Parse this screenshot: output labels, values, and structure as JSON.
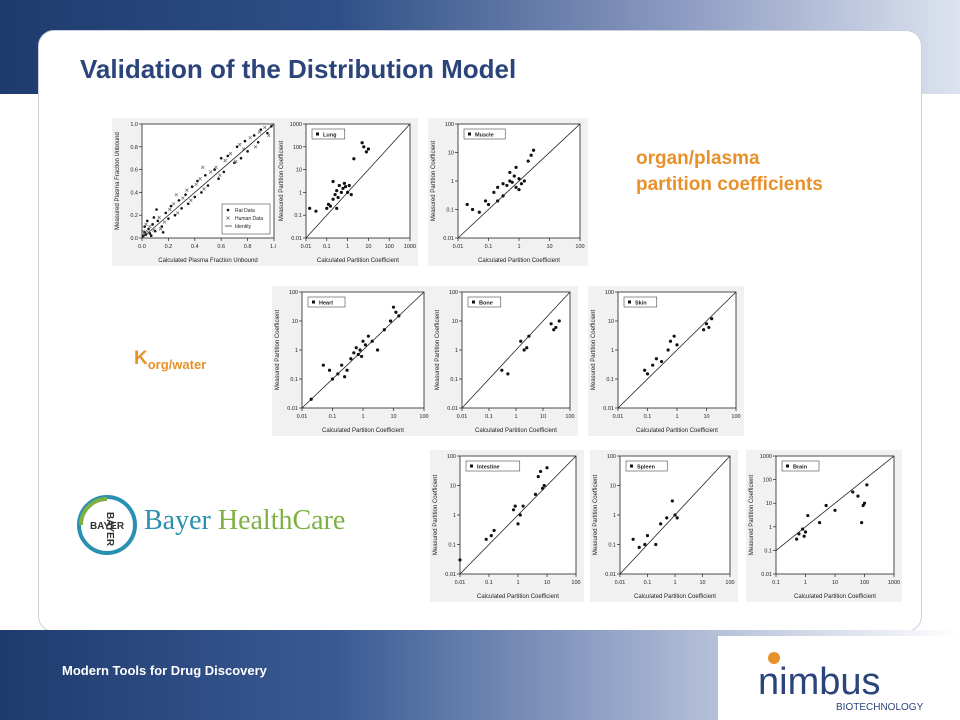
{
  "slide": {
    "title": "Validation of the Distribution Model",
    "footer": "Modern Tools for Drug Discovery",
    "caption_line1": "organ/plasma",
    "caption_line2": "partition coefficients",
    "korg_main": "K",
    "korg_sub": "org/water",
    "bayer_name": "Bayer",
    "bayer_health": "HealthCare",
    "bayer_logo_text": "BAYER",
    "nimbus_name": "nimbus",
    "nimbus_sub": "BIOTECHNOLOGY",
    "colors": {
      "title": "#2b4479",
      "accent": "#e8912a",
      "band": "#1f3b6e"
    }
  },
  "chart_data": [
    {
      "id": "fu",
      "type": "scatter",
      "xlabel": "Calculated Plasma Fraction Unbound",
      "ylabel": "Measured Plasma Fraction Unbound",
      "scale": "linear",
      "xlim": [
        0,
        1
      ],
      "ylim": [
        0,
        1
      ],
      "ticks": [
        "0.0",
        "0.2",
        "0.4",
        "0.6",
        "0.8",
        "1.0"
      ],
      "legend": [
        "Rat Data",
        "Human Data",
        "Identity"
      ],
      "series": [
        {
          "name": "Rat Data",
          "marker": "dot",
          "points": [
            [
              0.01,
              0.02
            ],
            [
              0.02,
              0.05
            ],
            [
              0.03,
              0.03
            ],
            [
              0.05,
              0.08
            ],
            [
              0.06,
              0.04
            ],
            [
              0.08,
              0.12
            ],
            [
              0.1,
              0.06
            ],
            [
              0.12,
              0.15
            ],
            [
              0.15,
              0.1
            ],
            [
              0.18,
              0.22
            ],
            [
              0.2,
              0.17
            ],
            [
              0.22,
              0.28
            ],
            [
              0.25,
              0.2
            ],
            [
              0.28,
              0.33
            ],
            [
              0.3,
              0.26
            ],
            [
              0.33,
              0.38
            ],
            [
              0.35,
              0.3
            ],
            [
              0.38,
              0.45
            ],
            [
              0.4,
              0.36
            ],
            [
              0.42,
              0.5
            ],
            [
              0.45,
              0.4
            ],
            [
              0.48,
              0.55
            ],
            [
              0.5,
              0.46
            ],
            [
              0.55,
              0.6
            ],
            [
              0.58,
              0.52
            ],
            [
              0.6,
              0.7
            ],
            [
              0.62,
              0.58
            ],
            [
              0.65,
              0.72
            ],
            [
              0.7,
              0.66
            ],
            [
              0.72,
              0.8
            ],
            [
              0.75,
              0.7
            ],
            [
              0.78,
              0.85
            ],
            [
              0.8,
              0.76
            ],
            [
              0.85,
              0.9
            ],
            [
              0.88,
              0.84
            ],
            [
              0.9,
              0.95
            ],
            [
              0.95,
              0.92
            ],
            [
              0.98,
              0.98
            ],
            [
              0.04,
              0.15
            ],
            [
              0.07,
              0.02
            ],
            [
              0.11,
              0.25
            ],
            [
              0.16,
              0.05
            ],
            [
              0.02,
              0.1
            ],
            [
              0.09,
              0.18
            ]
          ]
        },
        {
          "name": "Human Data",
          "marker": "x",
          "points": [
            [
              0.02,
              0.03
            ],
            [
              0.04,
              0.06
            ],
            [
              0.06,
              0.1
            ],
            [
              0.09,
              0.07
            ],
            [
              0.13,
              0.18
            ],
            [
              0.17,
              0.14
            ],
            [
              0.21,
              0.25
            ],
            [
              0.24,
              0.3
            ],
            [
              0.27,
              0.22
            ],
            [
              0.31,
              0.35
            ],
            [
              0.34,
              0.42
            ],
            [
              0.37,
              0.33
            ],
            [
              0.41,
              0.47
            ],
            [
              0.44,
              0.52
            ],
            [
              0.47,
              0.43
            ],
            [
              0.52,
              0.58
            ],
            [
              0.56,
              0.62
            ],
            [
              0.59,
              0.55
            ],
            [
              0.63,
              0.68
            ],
            [
              0.67,
              0.74
            ],
            [
              0.71,
              0.67
            ],
            [
              0.74,
              0.82
            ],
            [
              0.77,
              0.78
            ],
            [
              0.82,
              0.88
            ],
            [
              0.86,
              0.8
            ],
            [
              0.89,
              0.93
            ],
            [
              0.93,
              0.97
            ],
            [
              0.96,
              0.9
            ],
            [
              0.01,
              0.06
            ],
            [
              0.03,
              0.12
            ],
            [
              0.14,
              0.08
            ],
            [
              0.26,
              0.38
            ],
            [
              0.46,
              0.62
            ]
          ]
        }
      ]
    },
    {
      "id": "lung",
      "type": "scatter",
      "scale": "log",
      "xlim": [
        0.01,
        1000
      ],
      "ylim": [
        0.01,
        1000
      ],
      "xlabel": "Calculated Partition Coefficient",
      "ylabel": "Measured Partition Coefficient",
      "legend": [
        "Lung"
      ],
      "points": [
        [
          0.1,
          0.2
        ],
        [
          0.12,
          0.3
        ],
        [
          0.15,
          0.25
        ],
        [
          0.2,
          0.5
        ],
        [
          0.25,
          0.8
        ],
        [
          0.3,
          1.2
        ],
        [
          0.35,
          0.6
        ],
        [
          0.4,
          2
        ],
        [
          0.5,
          1
        ],
        [
          0.6,
          1.5
        ],
        [
          0.7,
          2.5
        ],
        [
          0.8,
          1.8
        ],
        [
          1,
          1
        ],
        [
          1.2,
          2
        ],
        [
          1.5,
          0.8
        ],
        [
          0.2,
          3
        ],
        [
          0.3,
          0.2
        ],
        [
          2,
          30
        ],
        [
          5,
          150
        ],
        [
          6,
          100
        ],
        [
          8,
          60
        ],
        [
          10,
          80
        ],
        [
          0.015,
          0.2
        ],
        [
          0.03,
          0.15
        ]
      ]
    },
    {
      "id": "muscle",
      "type": "scatter",
      "scale": "log",
      "xlim": [
        0.01,
        100
      ],
      "ylim": [
        0.01,
        100
      ],
      "xlabel": "Calculated Partition Coefficient",
      "ylabel": "Measured Partition Coefficient",
      "legend": [
        "Muscle"
      ],
      "points": [
        [
          0.02,
          0.15
        ],
        [
          0.03,
          0.1
        ],
        [
          0.05,
          0.08
        ],
        [
          0.08,
          0.2
        ],
        [
          0.1,
          0.15
        ],
        [
          0.15,
          0.4
        ],
        [
          0.2,
          0.6
        ],
        [
          0.3,
          0.8
        ],
        [
          0.4,
          0.7
        ],
        [
          0.5,
          1
        ],
        [
          0.6,
          0.9
        ],
        [
          0.7,
          1.5
        ],
        [
          0.8,
          0.6
        ],
        [
          1,
          1.2
        ],
        [
          1.2,
          0.8
        ],
        [
          1.5,
          1
        ],
        [
          2,
          5
        ],
        [
          2.5,
          8
        ],
        [
          3,
          12
        ],
        [
          0.3,
          0.3
        ],
        [
          0.5,
          2
        ],
        [
          0.8,
          3
        ],
        [
          1,
          0.5
        ],
        [
          0.2,
          0.2
        ]
      ]
    },
    {
      "id": "heart",
      "type": "scatter",
      "scale": "log",
      "xlim": [
        0.01,
        100
      ],
      "ylim": [
        0.01,
        100
      ],
      "xlabel": "Calculated Partition Coefficient",
      "ylabel": "Measured Partition Coefficient",
      "legend": [
        "Heart"
      ],
      "points": [
        [
          0.02,
          0.02
        ],
        [
          0.05,
          0.3
        ],
        [
          0.08,
          0.2
        ],
        [
          0.1,
          0.1
        ],
        [
          0.15,
          0.15
        ],
        [
          0.2,
          0.3
        ],
        [
          0.3,
          0.2
        ],
        [
          0.4,
          0.5
        ],
        [
          0.5,
          0.8
        ],
        [
          0.6,
          1.2
        ],
        [
          0.7,
          0.7
        ],
        [
          0.8,
          1
        ],
        [
          1,
          2
        ],
        [
          1.2,
          1.5
        ],
        [
          1.5,
          3
        ],
        [
          2,
          2
        ],
        [
          3,
          1
        ],
        [
          5,
          5
        ],
        [
          8,
          10
        ],
        [
          10,
          30
        ],
        [
          12,
          20
        ],
        [
          15,
          15
        ],
        [
          0.25,
          0.12
        ],
        [
          0.9,
          0.6
        ]
      ]
    },
    {
      "id": "bone",
      "type": "scatter",
      "scale": "log",
      "xlim": [
        0.01,
        100
      ],
      "ylim": [
        0.01,
        100
      ],
      "xlabel": "Calculated Partition Coefficient",
      "ylabel": "Measured Partition Coefficient",
      "legend": [
        "Bone"
      ],
      "points": [
        [
          0.3,
          0.2
        ],
        [
          0.5,
          0.15
        ],
        [
          1.5,
          2
        ],
        [
          2,
          1
        ],
        [
          2.5,
          1.2
        ],
        [
          3,
          3
        ],
        [
          20,
          8
        ],
        [
          25,
          5
        ],
        [
          30,
          6
        ],
        [
          40,
          10
        ]
      ]
    },
    {
      "id": "skin",
      "type": "scatter",
      "scale": "log",
      "xlim": [
        0.01,
        100
      ],
      "ylim": [
        0.01,
        100
      ],
      "xlabel": "Calculated Partition Coefficient",
      "ylabel": "Measured Partition Coefficient",
      "legend": [
        "Skin"
      ],
      "points": [
        [
          0.08,
          0.2
        ],
        [
          0.1,
          0.15
        ],
        [
          0.15,
          0.3
        ],
        [
          0.2,
          0.5
        ],
        [
          0.3,
          0.4
        ],
        [
          0.5,
          1
        ],
        [
          0.6,
          2
        ],
        [
          0.8,
          3
        ],
        [
          1,
          1.5
        ],
        [
          8,
          5
        ],
        [
          10,
          8
        ],
        [
          12,
          6
        ],
        [
          15,
          12
        ]
      ]
    },
    {
      "id": "intestine",
      "type": "scatter",
      "scale": "log",
      "xlim": [
        0.01,
        100
      ],
      "ylim": [
        0.01,
        100
      ],
      "xlabel": "Calculated Partition Coefficient",
      "ylabel": "Measured Partition Coefficient",
      "legend": [
        "Intestine"
      ],
      "points": [
        [
          0.01,
          0.03
        ],
        [
          0.08,
          0.15
        ],
        [
          0.12,
          0.2
        ],
        [
          0.15,
          0.3
        ],
        [
          0.7,
          1.5
        ],
        [
          0.8,
          2
        ],
        [
          1,
          0.5
        ],
        [
          1.2,
          1
        ],
        [
          1.5,
          2
        ],
        [
          4,
          5
        ],
        [
          5,
          20
        ],
        [
          6,
          30
        ],
        [
          7,
          8
        ],
        [
          8,
          10
        ],
        [
          10,
          40
        ]
      ]
    },
    {
      "id": "spleen",
      "type": "scatter",
      "scale": "log",
      "xlim": [
        0.01,
        100
      ],
      "ylim": [
        0.01,
        100
      ],
      "xlabel": "Calculated Partition Coefficient",
      "ylabel": "Measured Partition Coefficient",
      "legend": [
        "Spleen"
      ],
      "points": [
        [
          0.03,
          0.15
        ],
        [
          0.05,
          0.08
        ],
        [
          0.08,
          0.1
        ],
        [
          0.1,
          0.2
        ],
        [
          0.2,
          0.1
        ],
        [
          0.3,
          0.5
        ],
        [
          0.5,
          0.8
        ],
        [
          0.8,
          3
        ],
        [
          1,
          1
        ],
        [
          1.2,
          0.8
        ]
      ]
    },
    {
      "id": "brain",
      "type": "scatter",
      "scale": "log",
      "xlim": [
        0.1,
        1000
      ],
      "ylim": [
        0.01,
        1000
      ],
      "xlabel": "Calculated Partition Coefficient",
      "ylabel": "Measured Partition Coefficient",
      "legend": [
        "Brain"
      ],
      "points": [
        [
          0.5,
          0.3
        ],
        [
          0.6,
          0.5
        ],
        [
          0.8,
          0.8
        ],
        [
          0.9,
          0.4
        ],
        [
          1,
          0.6
        ],
        [
          1.2,
          3
        ],
        [
          3,
          1.5
        ],
        [
          5,
          8
        ],
        [
          10,
          5
        ],
        [
          40,
          30
        ],
        [
          60,
          20
        ],
        [
          80,
          1.5
        ],
        [
          100,
          10
        ],
        [
          120,
          60
        ],
        [
          90,
          8
        ]
      ]
    }
  ]
}
